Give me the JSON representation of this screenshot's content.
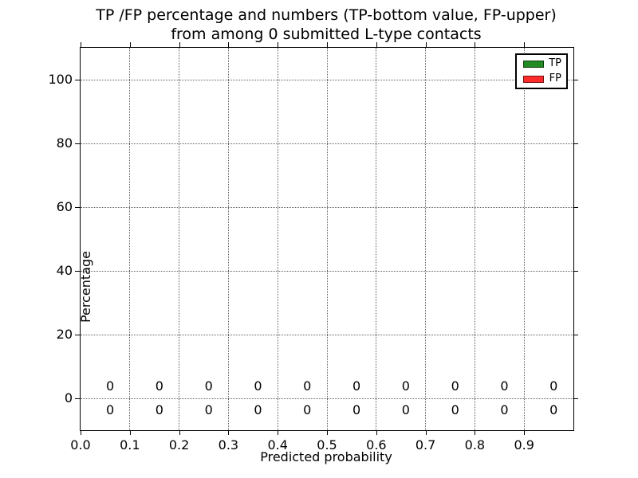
{
  "chart_data": {
    "type": "bar",
    "title_line1": "TP /FP percentage and numbers (TP-bottom value, FP-upper)",
    "title_line2": "from among 0 submitted L-type contacts",
    "xlabel": "Predicted probability",
    "ylabel": "Percentage",
    "xlim": [
      0.0,
      1.0
    ],
    "ylim": [
      -10,
      110
    ],
    "x_ticks": [
      0.0,
      0.1,
      0.2,
      0.3,
      0.4,
      0.5,
      0.6,
      0.7,
      0.8,
      0.9
    ],
    "x_tick_labels": [
      "0.0",
      "0.1",
      "0.2",
      "0.3",
      "0.4",
      "0.5",
      "0.6",
      "0.7",
      "0.8",
      "0.9"
    ],
    "y_ticks": [
      0,
      20,
      40,
      60,
      80,
      100
    ],
    "y_tick_labels": [
      "0",
      "20",
      "40",
      "60",
      "80",
      "100"
    ],
    "grid": true,
    "grid_linestyle": "dotted",
    "legend_position": "upper right",
    "bar_centers_x": [
      0.06,
      0.16,
      0.26,
      0.36,
      0.46,
      0.56,
      0.66,
      0.76,
      0.86,
      0.96
    ],
    "series": [
      {
        "name": "TP",
        "color": "#228B22",
        "values": [
          0,
          0,
          0,
          0,
          0,
          0,
          0,
          0,
          0,
          0
        ],
        "count_labels": [
          "0",
          "0",
          "0",
          "0",
          "0",
          "0",
          "0",
          "0",
          "0",
          "0"
        ],
        "count_label_row": "bottom",
        "count_label_y": -3.75
      },
      {
        "name": "FP",
        "color": "#FF2A2A",
        "values": [
          0,
          0,
          0,
          0,
          0,
          0,
          0,
          0,
          0,
          0
        ],
        "count_labels": [
          "0",
          "0",
          "0",
          "0",
          "0",
          "0",
          "0",
          "0",
          "0",
          "0"
        ],
        "count_label_row": "top",
        "count_label_y": 3.75
      }
    ]
  }
}
